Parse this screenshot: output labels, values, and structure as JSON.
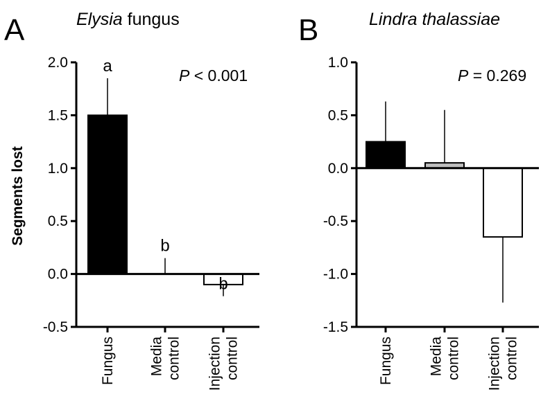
{
  "chart_data": [
    {
      "type": "bar",
      "panel_label": "A",
      "title_italic": "Elysia",
      "title_rest": " fungus",
      "ylabel": "Segments lost",
      "xlabel": "",
      "ylim": [
        -0.5,
        2.0
      ],
      "yticks": [
        "-0.5",
        "0.0",
        "0.5",
        "1.0",
        "1.5",
        "2.0"
      ],
      "ytick_values": [
        -0.5,
        0.0,
        0.5,
        1.0,
        1.5,
        2.0
      ],
      "categories": [
        [
          "Fungus"
        ],
        [
          "Media",
          "control"
        ],
        [
          "Injection",
          "control"
        ]
      ],
      "values": [
        1.5,
        0.0,
        -0.1
      ],
      "errors": [
        0.35,
        0.15,
        0.11
      ],
      "fills": [
        "#000000",
        "#ffffff",
        "#ffffff"
      ],
      "significance": [
        "a",
        "b",
        "b"
      ],
      "p_italic": "P",
      "p_text": " < 0.001",
      "grid": false
    },
    {
      "type": "bar",
      "panel_label": "B",
      "title_italic": "Lindra thalassiae",
      "title_rest": "",
      "ylabel": "",
      "xlabel": "",
      "ylim": [
        -1.5,
        1.0
      ],
      "yticks": [
        "-1.5",
        "-1.0",
        "-0.5",
        "0.0",
        "0.5",
        "1.0"
      ],
      "ytick_values": [
        -1.5,
        -1.0,
        -0.5,
        0.0,
        0.5,
        1.0
      ],
      "categories": [
        [
          "Fungus"
        ],
        [
          "Media",
          "control"
        ],
        [
          "Injection",
          "control"
        ]
      ],
      "values": [
        0.25,
        0.05,
        -0.65
      ],
      "errors": [
        0.38,
        0.5,
        0.62
      ],
      "fills": [
        "#000000",
        "#bfbfbf",
        "#ffffff"
      ],
      "significance": [],
      "p_italic": "P",
      "p_text": " = 0.269",
      "grid": false
    }
  ]
}
